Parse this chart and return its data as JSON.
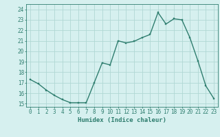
{
  "x": [
    0,
    1,
    2,
    3,
    4,
    5,
    6,
    7,
    8,
    9,
    10,
    11,
    12,
    13,
    14,
    15,
    16,
    17,
    18,
    19,
    20,
    21,
    22,
    23
  ],
  "y": [
    17.3,
    16.9,
    16.3,
    15.8,
    15.4,
    15.1,
    15.1,
    15.1,
    17.0,
    18.9,
    18.7,
    21.0,
    20.8,
    20.95,
    21.3,
    21.6,
    23.7,
    22.6,
    23.1,
    23.0,
    21.3,
    19.1,
    16.7,
    15.5
  ],
  "line_color": "#2e7d6e",
  "bg_color": "#d6f0ef",
  "grid_color": "#b0d8d4",
  "xlabel": "Humidex (Indice chaleur)",
  "ylabel_ticks": [
    15,
    16,
    17,
    18,
    19,
    20,
    21,
    22,
    23,
    24
  ],
  "ylim": [
    14.7,
    24.5
  ],
  "xlim": [
    -0.5,
    23.5
  ],
  "tick_label_color": "#2e7d6e",
  "marker_size": 2.0,
  "line_width": 1.0,
  "xlabel_fontsize": 6.5,
  "tick_fontsize": 5.5
}
